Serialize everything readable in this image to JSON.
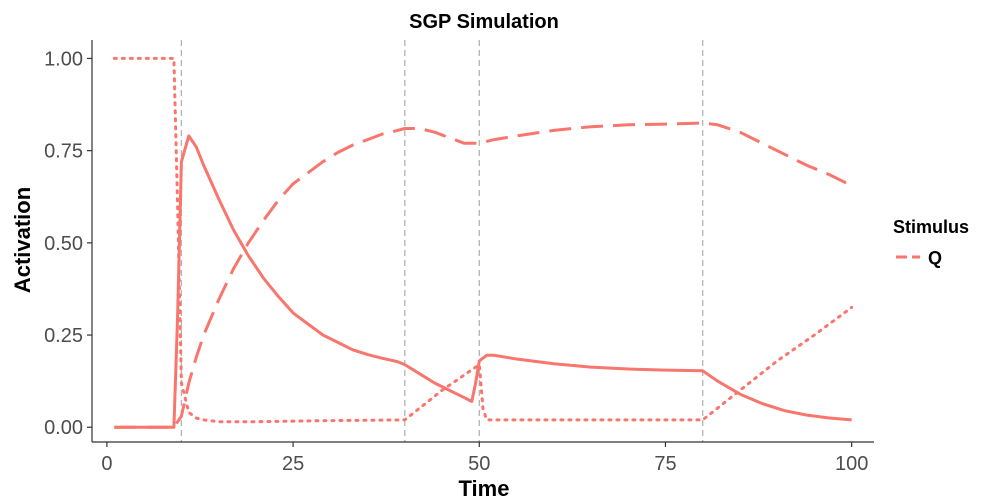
{
  "chart_data": {
    "type": "line",
    "title": "SGP Simulation",
    "xlabel": "Time",
    "ylabel": "Activation",
    "xlim": [
      -2,
      103
    ],
    "ylim": [
      -0.04,
      1.05
    ],
    "x_ticks": [
      0,
      25,
      50,
      75,
      100
    ],
    "y_ticks": [
      0.0,
      0.25,
      0.5,
      0.75,
      1.0
    ],
    "y_tick_labels": [
      "0.00",
      "0.25",
      "0.50",
      "0.75",
      "1.00"
    ],
    "grid": false,
    "event_lines": [
      10,
      40,
      50,
      80
    ],
    "legend": {
      "title": "Stimulus",
      "entries": [
        "Q"
      ],
      "position": "right"
    },
    "colors": {
      "line": "#F8766D",
      "event_line": "#b3b3b3",
      "axis": "#333333"
    },
    "series": [
      {
        "linetype": "solid",
        "x": [
          1,
          8,
          9,
          9.5,
          10,
          11,
          12,
          13,
          15,
          17,
          19,
          21,
          23,
          25,
          27,
          29,
          31,
          33,
          35,
          37,
          39,
          40,
          42,
          44,
          46,
          48,
          49,
          49.5,
          50,
          51,
          52,
          55,
          60,
          65,
          70,
          75,
          80,
          82,
          85,
          88,
          91,
          94,
          97,
          100
        ],
        "y": [
          0,
          0,
          0,
          0.3,
          0.72,
          0.79,
          0.76,
          0.71,
          0.62,
          0.535,
          0.465,
          0.405,
          0.355,
          0.31,
          0.28,
          0.25,
          0.23,
          0.21,
          0.197,
          0.187,
          0.178,
          0.17,
          0.145,
          0.12,
          0.1,
          0.08,
          0.07,
          0.12,
          0.18,
          0.195,
          0.195,
          0.185,
          0.172,
          0.163,
          0.158,
          0.155,
          0.153,
          0.125,
          0.09,
          0.064,
          0.045,
          0.033,
          0.025,
          0.02
        ]
      },
      {
        "linetype": "dashed",
        "x": [
          1,
          9,
          10,
          11,
          12,
          13,
          15,
          17,
          19,
          21,
          23,
          25,
          27,
          29,
          31,
          33,
          35,
          37,
          39,
          40,
          42,
          44,
          46,
          48,
          50,
          52,
          55,
          60,
          65,
          70,
          75,
          80,
          82,
          85,
          88,
          91,
          94,
          97,
          100
        ],
        "y": [
          0,
          0,
          0.03,
          0.12,
          0.19,
          0.25,
          0.345,
          0.43,
          0.5,
          0.56,
          0.615,
          0.66,
          0.69,
          0.72,
          0.745,
          0.765,
          0.78,
          0.795,
          0.805,
          0.81,
          0.81,
          0.8,
          0.785,
          0.77,
          0.77,
          0.78,
          0.79,
          0.805,
          0.815,
          0.82,
          0.822,
          0.825,
          0.82,
          0.8,
          0.77,
          0.74,
          0.71,
          0.685,
          0.655
        ]
      },
      {
        "linetype": "dotted",
        "x": [
          1,
          9,
          9.5,
          10,
          11,
          12,
          13,
          15,
          20,
          30,
          40,
          45,
          50,
          50.5,
          51,
          60,
          70,
          80,
          85,
          90,
          95,
          100
        ],
        "y": [
          1,
          1,
          0.6,
          0.12,
          0.04,
          0.025,
          0.02,
          0.015,
          0.015,
          0.018,
          0.02,
          0.1,
          0.17,
          0.05,
          0.02,
          0.02,
          0.02,
          0.02,
          0.1,
          0.18,
          0.25,
          0.325
        ]
      }
    ]
  }
}
